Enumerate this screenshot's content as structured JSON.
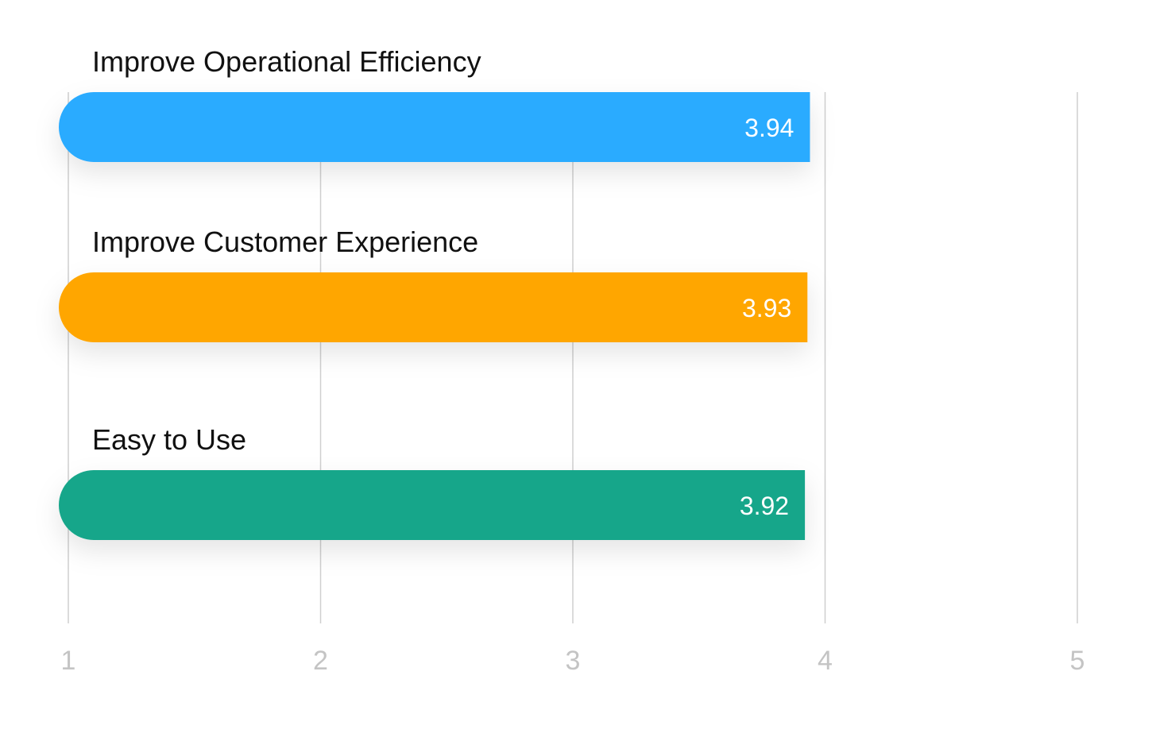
{
  "chart_data": {
    "type": "bar",
    "orientation": "horizontal",
    "categories": [
      "Improve Operational Efficiency",
      "Improve Customer Experience",
      "Easy to Use"
    ],
    "values": [
      3.94,
      3.93,
      3.92
    ],
    "value_labels": [
      "3.94",
      "3.93",
      "3.92"
    ],
    "colors": [
      "#2aabff",
      "#ffa600",
      "#17a68a"
    ],
    "xlim": [
      1,
      5
    ],
    "ticks": [
      1,
      2,
      3,
      4,
      5
    ],
    "tick_labels": [
      "1",
      "2",
      "3",
      "4",
      "5"
    ],
    "grid": true,
    "grid_color": "#cfcfcf",
    "tick_color": "#c4c4c4",
    "title": "",
    "xlabel": "",
    "ylabel": ""
  }
}
